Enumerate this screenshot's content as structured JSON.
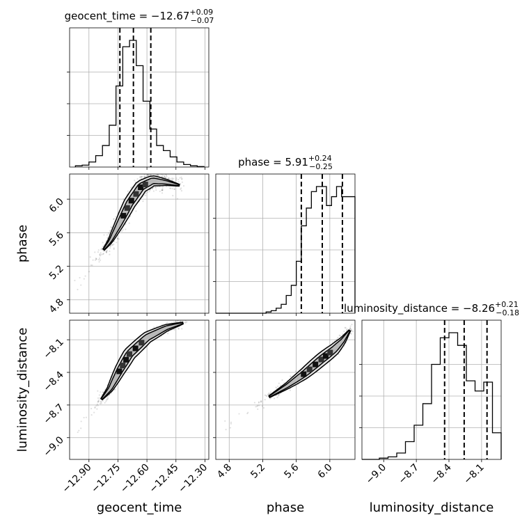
{
  "chart_data": {
    "type": "corner",
    "parameters": [
      {
        "name": "geocent_time",
        "xlabel": "geocent_time",
        "title": {
          "text": "geocent_time = −12.67",
          "sup": "+0.09",
          "sub": "−0.07"
        },
        "range": [
          -13.0,
          -12.28
        ],
        "ticks": [
          -12.9,
          -12.75,
          -12.6,
          -12.45,
          -12.3
        ],
        "tick_labels": [
          "−12.90",
          "−12.75",
          "−12.60",
          "−12.45",
          "−12.30"
        ],
        "quantiles": [
          -12.74,
          -12.67,
          -12.58
        ],
        "hist_edges": [
          -12.97,
          -12.935,
          -12.9,
          -12.865,
          -12.83,
          -12.795,
          -12.76,
          -12.725,
          -12.69,
          -12.655,
          -12.62,
          -12.585,
          -12.55,
          -12.515,
          -12.48,
          -12.445,
          -12.41,
          -12.375,
          -12.34,
          -12.305
        ],
        "hist_counts": [
          0.01,
          0.015,
          0.04,
          0.09,
          0.17,
          0.33,
          0.64,
          0.95,
          1.0,
          0.8,
          0.52,
          0.3,
          0.17,
          0.13,
          0.08,
          0.04,
          0.02,
          0.01,
          0.004
        ]
      },
      {
        "name": "phase",
        "xlabel": "phase",
        "ylabel": "phase",
        "title": {
          "text": "phase = 5.91",
          "sup": "+0.24",
          "sub": "−0.25"
        },
        "range": [
          4.64,
          6.3
        ],
        "ticks": [
          4.8,
          5.2,
          5.6,
          6.0
        ],
        "tick_labels": [
          "4.8",
          "5.2",
          "5.6",
          "6.0"
        ],
        "quantiles": [
          5.66,
          5.91,
          6.15
        ],
        "hist_edges": [
          4.64,
          4.7,
          4.76,
          4.82,
          4.88,
          4.94,
          5.0,
          5.06,
          5.12,
          5.18,
          5.24,
          5.3,
          5.36,
          5.42,
          5.48,
          5.54,
          5.6,
          5.66,
          5.72,
          5.78,
          5.84,
          5.9,
          5.96,
          6.02,
          6.08,
          6.14,
          6.2,
          6.26,
          6.3
        ],
        "hist_counts": [
          0,
          0,
          0,
          0,
          0,
          0,
          0,
          0,
          0,
          0,
          0.01,
          0.02,
          0.04,
          0.07,
          0.14,
          0.22,
          0.41,
          0.69,
          0.83,
          0.96,
          1.0,
          1.0,
          0.85,
          0.92,
          1.0,
          0.92,
          0.92,
          0.92
        ]
      },
      {
        "name": "luminosity_distance",
        "xlabel": "luminosity_distance",
        "ylabel": "luminosity_distance",
        "title": {
          "text": "luminosity_distance = −8.26",
          "sup": "+0.21",
          "sub": "−0.18"
        },
        "range": [
          -9.2,
          -7.92
        ],
        "ticks": [
          -9.0,
          -8.7,
          -8.4,
          -8.1
        ],
        "tick_labels": [
          "−9.0",
          "−8.7",
          "−8.4",
          "−8.1"
        ],
        "quantiles": [
          -8.44,
          -8.26,
          -8.05
        ],
        "hist_edges": [
          -9.2,
          -9.12,
          -9.04,
          -8.96,
          -8.88,
          -8.8,
          -8.72,
          -8.64,
          -8.56,
          -8.48,
          -8.4,
          -8.32,
          -8.24,
          -8.16,
          -8.08,
          -8.0,
          -7.92
        ],
        "hist_counts": [
          0,
          0,
          0.01,
          0.02,
          0.05,
          0.14,
          0.27,
          0.44,
          0.75,
          0.96,
          1.0,
          0.9,
          0.62,
          0.54,
          0.61,
          0.21
        ]
      }
    ],
    "pairs": [
      {
        "x": "geocent_time",
        "y": "phase",
        "ridge": [
          [
            -12.96,
            4.95
          ],
          [
            -12.85,
            5.32
          ],
          [
            -12.79,
            5.5
          ],
          [
            -12.74,
            5.72
          ],
          [
            -12.69,
            5.95
          ],
          [
            -12.63,
            6.15
          ],
          [
            -12.57,
            6.22
          ],
          [
            -12.5,
            6.2
          ],
          [
            -12.42,
            6.16
          ]
        ],
        "spread": 0.055,
        "n_points": 1400
      },
      {
        "x": "geocent_time",
        "y": "luminosity_distance",
        "ridge": [
          [
            -12.96,
            -8.95
          ],
          [
            -12.85,
            -8.68
          ],
          [
            -12.79,
            -8.55
          ],
          [
            -12.74,
            -8.38
          ],
          [
            -12.69,
            -8.23
          ],
          [
            -12.6,
            -8.08
          ],
          [
            -12.5,
            -7.99
          ],
          [
            -12.4,
            -7.94
          ]
        ],
        "spread": 0.03,
        "n_points": 1400
      },
      {
        "x": "phase",
        "y": "luminosity_distance",
        "ridge": [
          [
            4.78,
            -8.88
          ],
          [
            5.2,
            -8.66
          ],
          [
            5.5,
            -8.52
          ],
          [
            5.7,
            -8.41
          ],
          [
            5.9,
            -8.28
          ],
          [
            6.05,
            -8.19
          ],
          [
            6.15,
            -8.11
          ],
          [
            6.25,
            -8.0
          ]
        ],
        "spread": 0.03,
        "n_points": 1400
      }
    ],
    "grid": true,
    "hist_style": "step",
    "quantile_style": "dashed"
  }
}
